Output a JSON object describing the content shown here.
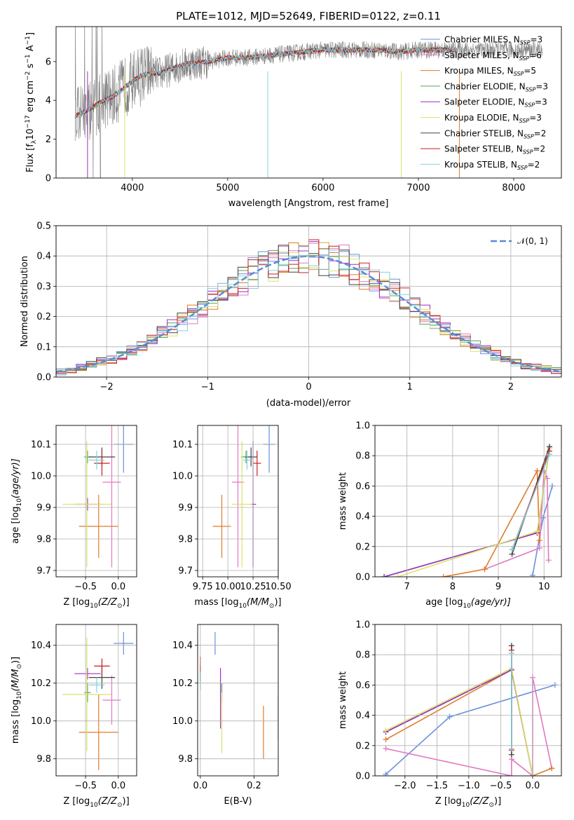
{
  "title": "PLATE=1012, MJD=52649, FIBERID=0122, z=0.11",
  "colors": {
    "Chabrier MILES": "#6a8fdc",
    "Salpeter MILES": "#e377c2",
    "Kroupa MILES": "#e07b2a",
    "Chabrier ELODIE": "#5aa05a",
    "Salpeter ELODIE": "#9b30c0",
    "Kroupa ELODIE": "#dce36a",
    "Chabrier STELIB": "#444444",
    "Salpeter STELIB": "#c81e1e",
    "Kroupa STELIB": "#7fd3e0",
    "data": "#808080",
    "normal": "#5b8ad6",
    "grid": "#b0b0b0"
  },
  "spectrum": {
    "xlabel": "wavelength [Angstrom, rest frame]",
    "ylabel_parts": [
      "Flux [f",
      "λ",
      "10",
      "−17",
      " erg cm",
      "−2",
      " s",
      "−1",
      " A",
      "−1",
      "]"
    ],
    "xlim": [
      3200,
      8500
    ],
    "ylim": [
      0,
      7.8
    ],
    "xticks": [
      "4000",
      "5000",
      "6000",
      "7000",
      "8000"
    ],
    "yticks": [
      "0",
      "2",
      "4",
      "6"
    ],
    "legend": [
      {
        "label": "Chabrier MILES, N",
        "sub": "SSP",
        "tail": "=3",
        "key": "Chabrier MILES"
      },
      {
        "label": "Salpeter MILES, N",
        "sub": "SSP",
        "tail": "=6",
        "key": "Salpeter MILES"
      },
      {
        "label": "Kroupa MILES, N",
        "sub": "SSP",
        "tail": "=5",
        "key": "Kroupa MILES"
      },
      {
        "label": "Chabrier ELODIE, N",
        "sub": "SSP",
        "tail": "=3",
        "key": "Chabrier ELODIE"
      },
      {
        "label": "Salpeter ELODIE, N",
        "sub": "SSP",
        "tail": "=3",
        "key": "Salpeter ELODIE"
      },
      {
        "label": "Kroupa ELODIE, N",
        "sub": "SSP",
        "tail": "=3",
        "key": "Kroupa ELODIE"
      },
      {
        "label": "Chabrier STELIB, N",
        "sub": "SSP",
        "tail": "=2",
        "key": "Chabrier STELIB"
      },
      {
        "label": "Salpeter STELIB, N",
        "sub": "SSP",
        "tail": "=2",
        "key": "Salpeter STELIB"
      },
      {
        "label": "Kroupa STELIB, N",
        "sub": "SSP",
        "tail": "=2",
        "key": "Kroupa STELIB"
      }
    ]
  },
  "chart_data": [
    {
      "type": "line",
      "panel": "spectrum",
      "model_continuum": {
        "x": [
          3400,
          3500,
          3600,
          3700,
          3800,
          3900,
          4000,
          4100,
          4200,
          4300,
          4400,
          4500,
          4600,
          4800,
          5000,
          5200,
          5400,
          5600,
          5800,
          6000,
          6200,
          6400,
          6600,
          6800,
          7000,
          7200,
          7400
        ],
        "y": [
          3.2,
          3.4,
          3.7,
          4.0,
          4.2,
          4.6,
          5.0,
          5.3,
          5.4,
          5.4,
          5.6,
          5.8,
          5.9,
          6.0,
          6.2,
          6.2,
          6.3,
          6.4,
          6.5,
          6.6,
          6.6,
          6.6,
          6.6,
          6.5,
          6.6,
          6.6,
          6.6
        ]
      },
      "data_range": [
        3400,
        8300
      ]
    },
    {
      "type": "line",
      "panel": "residual histogram",
      "xlabel": "(data-model)/error",
      "ylabel": "Normed distribution",
      "xlim": [
        -2.5,
        2.5
      ],
      "ylim": [
        0,
        0.5
      ],
      "xticks": [
        "−2",
        "−1",
        "0",
        "1",
        "2"
      ],
      "yticks": [
        "0.0",
        "0.1",
        "0.2",
        "0.3",
        "0.4",
        "0.5"
      ],
      "legend": "𝒩(0, 1)",
      "legend_position": "top-right",
      "grid": true,
      "bin_width": 0.1
    },
    {
      "type": "scatter",
      "panel": "age vs Z",
      "xlabel_parts": [
        "Z [log",
        "10",
        "(Z/Z",
        "⊙",
        ")]"
      ],
      "ylabel_parts": [
        "age  [log",
        "10",
        "(age/yr)]"
      ],
      "xlim": [
        -0.95,
        0.28
      ],
      "ylim": [
        9.68,
        10.16
      ],
      "xticks": [
        "−0.5",
        "0.0"
      ],
      "yticks": [
        "9.7",
        "9.8",
        "9.9",
        "10.0",
        "10.1"
      ],
      "points": [
        {
          "key": "Chabrier MILES",
          "x": 0.08,
          "y": 10.1,
          "xerr": 0.15,
          "yerr": 0.09
        },
        {
          "key": "Salpeter MILES",
          "x": -0.1,
          "y": 9.98,
          "xerr": 0.14,
          "yerr": 0.27
        },
        {
          "key": "Kroupa MILES",
          "x": -0.3,
          "y": 9.84,
          "xerr": 0.3,
          "yerr": 0.1
        },
        {
          "key": "Chabrier ELODIE",
          "x": -0.47,
          "y": 10.06,
          "xerr": 0.05,
          "yerr": 0.02
        },
        {
          "key": "Salpeter ELODIE",
          "x": -0.47,
          "y": 9.91,
          "xerr": 0.2,
          "yerr": 0.02
        },
        {
          "key": "Kroupa ELODIE",
          "x": -0.48,
          "y": 9.91,
          "xerr": 0.37,
          "yerr": 0.2
        },
        {
          "key": "Chabrier STELIB",
          "x": -0.25,
          "y": 10.06,
          "xerr": 0.2,
          "yerr": 0.03
        },
        {
          "key": "Salpeter STELIB",
          "x": -0.25,
          "y": 10.04,
          "xerr": 0.12,
          "yerr": 0.04
        },
        {
          "key": "Kroupa STELIB",
          "x": -0.33,
          "y": 10.05,
          "xerr": 0.12,
          "yerr": 0.03
        }
      ]
    },
    {
      "type": "scatter",
      "panel": "age vs mass",
      "xlabel_parts": [
        "mass [log",
        "10",
        "(M/M",
        "⊙",
        ")]"
      ],
      "xlim": [
        9.7,
        10.5
      ],
      "ylim": [
        9.68,
        10.16
      ],
      "xticks": [
        "9.75",
        "10.00",
        "10.25",
        "10.50"
      ],
      "yticks": [
        "9.7",
        "9.8",
        "9.9",
        "10.0",
        "10.1"
      ],
      "points": [
        {
          "key": "Chabrier MILES",
          "x": 10.41,
          "y": 10.1,
          "xerr": 0.06,
          "yerr": 0.09
        },
        {
          "key": "Salpeter MILES",
          "x": 10.1,
          "y": 9.98,
          "xerr": 0.06,
          "yerr": 0.27
        },
        {
          "key": "Kroupa MILES",
          "x": 9.94,
          "y": 9.84,
          "xerr": 0.09,
          "yerr": 0.1
        },
        {
          "key": "Chabrier ELODIE",
          "x": 10.18,
          "y": 10.06,
          "xerr": 0.05,
          "yerr": 0.02
        },
        {
          "key": "Salpeter ELODIE",
          "x": 10.25,
          "y": 9.91,
          "xerr": 0.03,
          "yerr": 0.2
        },
        {
          "key": "Kroupa ELODIE",
          "x": 10.14,
          "y": 9.91,
          "xerr": 0.1,
          "yerr": 0.2
        },
        {
          "key": "Chabrier STELIB",
          "x": 10.23,
          "y": 10.06,
          "xerr": 0.06,
          "yerr": 0.03
        },
        {
          "key": "Salpeter STELIB",
          "x": 10.29,
          "y": 10.04,
          "xerr": 0.04,
          "yerr": 0.04
        },
        {
          "key": "Kroupa STELIB",
          "x": 10.19,
          "y": 10.05,
          "xerr": 0.04,
          "yerr": 0.03
        }
      ]
    },
    {
      "type": "line",
      "panel": "mass weight vs age",
      "xlabel_parts": [
        "age  [log",
        "10",
        "(age/yr)]"
      ],
      "ylabel": "mass weight",
      "xlim": [
        6.3,
        10.38
      ],
      "ylim": [
        0,
        1
      ],
      "xticks": [
        "7",
        "8",
        "9",
        "10"
      ],
      "yticks": [
        "0.0",
        "0.2",
        "0.4",
        "0.6",
        "0.8",
        "1.0"
      ],
      "series": [
        {
          "key": "Chabrier MILES",
          "x": [
            9.75,
            9.98,
            10.18
          ],
          "y": [
            0.01,
            0.39,
            0.6
          ]
        },
        {
          "key": "Salpeter MILES",
          "x": [
            8.7,
            9.9,
            10.0,
            10.07,
            10.1
          ],
          "y": [
            0.05,
            0.19,
            0.7,
            0.65,
            0.11
          ]
        },
        {
          "key": "Kroupa MILES",
          "x": [
            7.8,
            8.7,
            9.85,
            9.9
          ],
          "y": [
            0.0,
            0.05,
            0.7,
            0.24
          ]
        },
        {
          "key": "Chabrier ELODIE",
          "x": [
            6.5,
            9.85,
            10.12
          ],
          "y": [
            0.0,
            0.29,
            0.85
          ]
        },
        {
          "key": "Salpeter ELODIE",
          "x": [
            6.5,
            9.85,
            10.12
          ],
          "y": [
            0.0,
            0.29,
            0.85
          ]
        },
        {
          "key": "Kroupa ELODIE",
          "x": [
            6.8,
            9.85,
            10.12
          ],
          "y": [
            0.0,
            0.3,
            0.85
          ]
        },
        {
          "key": "Chabrier STELIB",
          "x": [
            9.3,
            10.12
          ],
          "y": [
            0.15,
            0.86
          ]
        },
        {
          "key": "Salpeter STELIB",
          "x": [
            9.3,
            10.12
          ],
          "y": [
            0.18,
            0.83
          ]
        },
        {
          "key": "Kroupa STELIB",
          "x": [
            9.3,
            10.12
          ],
          "y": [
            0.18,
            0.81
          ]
        }
      ]
    },
    {
      "type": "scatter",
      "panel": "mass vs Z",
      "xlabel_parts": [
        "Z [log",
        "10",
        "(Z/Z",
        "⊙",
        ")]"
      ],
      "ylabel_parts": [
        "mass [log",
        "10",
        "(M/M",
        "⊙",
        ")]"
      ],
      "xlim": [
        -0.95,
        0.28
      ],
      "ylim": [
        9.71,
        10.51
      ],
      "xticks": [
        "−0.5",
        "0.0"
      ],
      "yticks": [
        "9.8",
        "10.0",
        "10.2",
        "10.4"
      ],
      "points": [
        {
          "key": "Chabrier MILES",
          "x": 0.08,
          "y": 10.41,
          "xerr": 0.15,
          "yerr": 0.06
        },
        {
          "key": "Salpeter MILES",
          "x": -0.1,
          "y": 10.11,
          "xerr": 0.14,
          "yerr": 0.13
        },
        {
          "key": "Kroupa MILES",
          "x": -0.3,
          "y": 9.94,
          "xerr": 0.3,
          "yerr": 0.2
        },
        {
          "key": "Chabrier ELODIE",
          "x": -0.47,
          "y": 10.15,
          "xerr": 0.05,
          "yerr": 0.05
        },
        {
          "key": "Salpeter ELODIE",
          "x": -0.47,
          "y": 10.25,
          "xerr": 0.2,
          "yerr": 0.03
        },
        {
          "key": "Kroupa ELODIE",
          "x": -0.48,
          "y": 10.14,
          "xerr": 0.37,
          "yerr": 0.3
        },
        {
          "key": "Chabrier STELIB",
          "x": -0.25,
          "y": 10.23,
          "xerr": 0.2,
          "yerr": 0.06
        },
        {
          "key": "Salpeter STELIB",
          "x": -0.25,
          "y": 10.29,
          "xerr": 0.12,
          "yerr": 0.04
        },
        {
          "key": "Kroupa STELIB",
          "x": -0.33,
          "y": 10.19,
          "xerr": 0.12,
          "yerr": 0.04
        }
      ]
    },
    {
      "type": "scatter",
      "panel": "mass vs E(B-V)",
      "xlabel": "E(B-V)",
      "xlim": [
        -0.01,
        0.29
      ],
      "ylim": [
        9.71,
        10.51
      ],
      "xticks": [
        "0.0",
        "0.2"
      ],
      "yticks": [
        "9.8",
        "10.0",
        "10.2",
        "10.4"
      ],
      "points": [
        {
          "key": "Chabrier MILES",
          "x": 0.055,
          "y": 10.41,
          "yerr": 0.06
        },
        {
          "key": "Salpeter MILES",
          "x": 0.29,
          "y": 10.02,
          "yerr": 0.12
        },
        {
          "key": "Kroupa MILES",
          "x": 0.235,
          "y": 9.94,
          "yerr": 0.14
        },
        {
          "key": "Chabrier ELODIE",
          "x": 0.08,
          "y": 10.15,
          "yerr": 0.05
        },
        {
          "key": "Salpeter ELODIE",
          "x": 0.075,
          "y": 10.12,
          "yerr": 0.16
        },
        {
          "key": "Kroupa ELODIE",
          "x": 0.08,
          "y": 9.99,
          "yerr": 0.16
        },
        {
          "key": "Chabrier STELIB",
          "x": 0.0,
          "y": 10.25,
          "yerr": 0.04
        },
        {
          "key": "Salpeter STELIB",
          "x": 0.0,
          "y": 10.29,
          "yerr": 0.05
        },
        {
          "key": "Kroupa STELIB",
          "x": 0.0,
          "y": 10.21,
          "yerr": 0.05
        }
      ]
    },
    {
      "type": "line",
      "panel": "mass weight vs Z",
      "xlabel_parts": [
        "Z [log",
        "10",
        "(Z/Z",
        "⊙",
        ")]"
      ],
      "ylabel": "mass weight",
      "xlim": [
        -2.47,
        0.45
      ],
      "ylim": [
        0,
        1
      ],
      "xticks": [
        "−2.0",
        "−1.5",
        "−1.0",
        "−0.5",
        "0.0"
      ],
      "yticks": [
        "0.0",
        "0.2",
        "0.4",
        "0.6",
        "0.8",
        "1.0"
      ],
      "series": [
        {
          "key": "Chabrier MILES",
          "x": [
            -2.3,
            -1.3,
            0.35
          ],
          "y": [
            0.01,
            0.39,
            0.6
          ]
        },
        {
          "key": "Salpeter MILES",
          "x": [
            -2.3,
            -0.33,
            -0.33,
            0.0,
            0.0,
            0.3
          ],
          "y": [
            0.18,
            0.0,
            0.11,
            0.0,
            0.65,
            0.05
          ]
        },
        {
          "key": "Kroupa MILES",
          "x": [
            -2.3,
            -0.33,
            0.0,
            0.3
          ],
          "y": [
            0.24,
            0.7,
            0.0,
            0.05
          ]
        },
        {
          "key": "Chabrier ELODIE",
          "x": [
            -2.3,
            -0.33,
            0.0
          ],
          "y": [
            0.29,
            0.7,
            0.0
          ]
        },
        {
          "key": "Salpeter ELODIE",
          "x": [
            -2.3,
            -0.33,
            0.0
          ],
          "y": [
            0.29,
            0.7,
            0.0
          ]
        },
        {
          "key": "Kroupa ELODIE",
          "x": [
            -2.3,
            -0.33,
            0.0
          ],
          "y": [
            0.3,
            0.71,
            0.0
          ]
        },
        {
          "key": "Chabrier STELIB",
          "x": [
            -0.33,
            -0.33
          ],
          "y": [
            0.14,
            0.86
          ]
        },
        {
          "key": "Salpeter STELIB",
          "x": [
            -0.33,
            -0.33
          ],
          "y": [
            0.17,
            0.83
          ]
        },
        {
          "key": "Kroupa STELIB",
          "x": [
            -0.33,
            -0.33
          ],
          "y": [
            0.18,
            0.81
          ]
        }
      ]
    }
  ]
}
